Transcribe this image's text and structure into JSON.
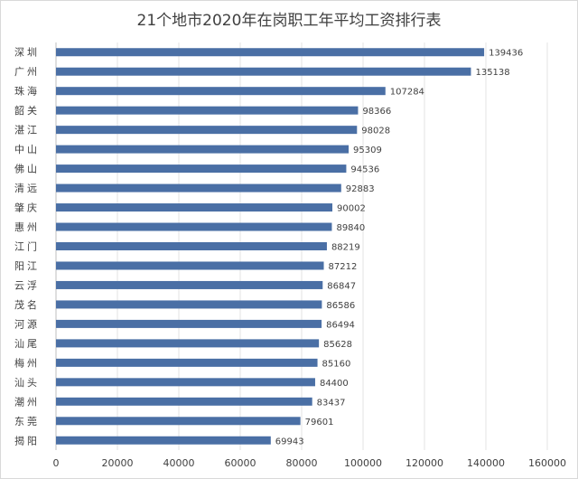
{
  "chart_data": {
    "type": "bar",
    "orientation": "horizontal",
    "title": "21个地市2020年在岗职工年平均工资排行表",
    "categories": [
      "深圳",
      "广州",
      "珠海",
      "韶关",
      "湛江",
      "中山",
      "佛山",
      "清远",
      "肇庆",
      "惠州",
      "江门",
      "阳江",
      "云浮",
      "茂名",
      "河源",
      "汕尾",
      "梅州",
      "汕头",
      "潮州",
      "东莞",
      "揭阳"
    ],
    "values": [
      139436,
      135138,
      107284,
      98366,
      98028,
      95309,
      94536,
      92883,
      90002,
      89840,
      88219,
      87212,
      86847,
      86586,
      86494,
      85628,
      85160,
      84400,
      83437,
      79601,
      69943
    ],
    "xlim": [
      0,
      160000
    ],
    "xticks": [
      0,
      20000,
      40000,
      60000,
      80000,
      100000,
      120000,
      140000,
      160000
    ],
    "grid": true,
    "bar_color": "#4a6fa5",
    "data_labels": true
  }
}
